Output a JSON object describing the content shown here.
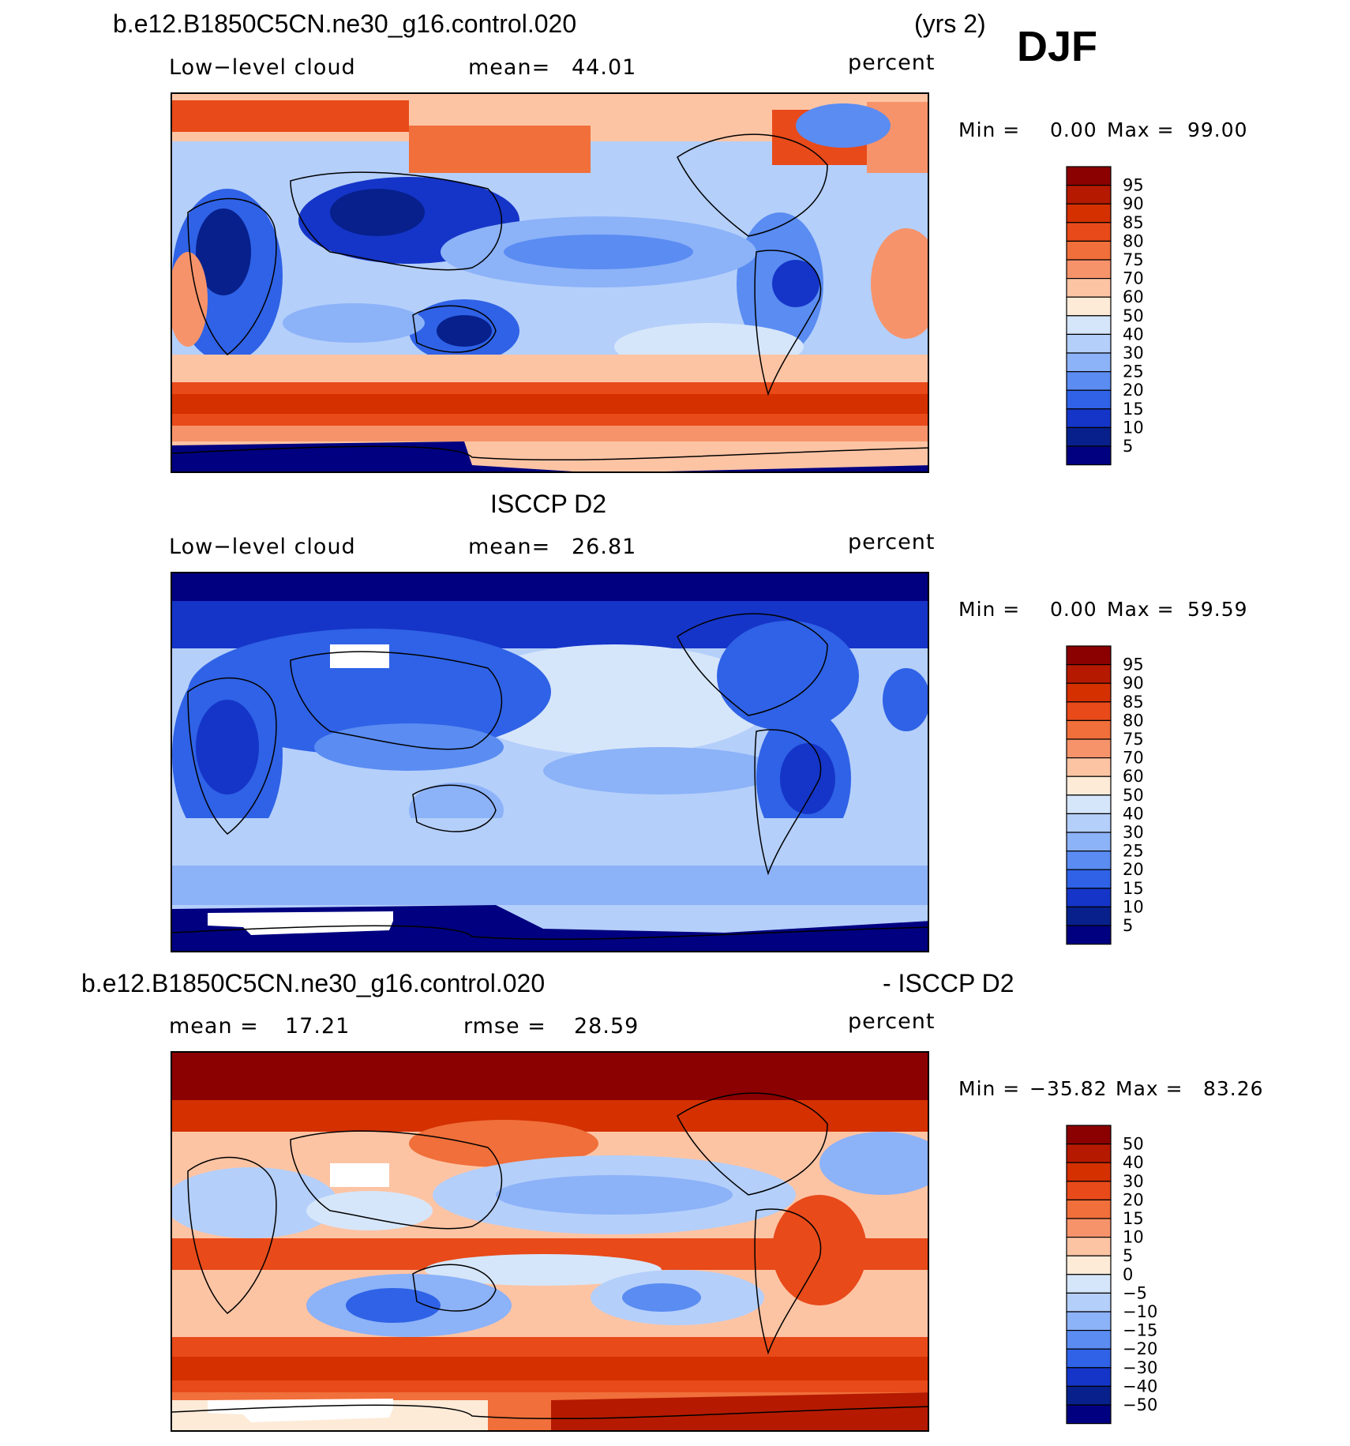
{
  "figure": {
    "season": "DJF"
  },
  "chart_data": [
    {
      "type": "heatmap",
      "title": "b.e12.B1850C5CN.ne30_g16.control.020",
      "title_right": "(yrs 2)",
      "left_label": "Low−level cloud",
      "stat_label": "mean=",
      "stat_value": "44.01",
      "units": "percent",
      "min_label": "Min =",
      "min_value": "0.00",
      "max_label": "Max =",
      "max_value": "99.00",
      "colorbar_levels": [
        "95",
        "90",
        "85",
        "80",
        "75",
        "70",
        "60",
        "50",
        "40",
        "30",
        "25",
        "20",
        "15",
        "10",
        "5"
      ],
      "colorbar_colors": [
        "#8b0000",
        "#b51a00",
        "#d43000",
        "#e84a1a",
        "#f06f3a",
        "#f7936a",
        "#fdc4a4",
        "#fdebd8",
        "#d6e6fa",
        "#b4cffa",
        "#8cb2f8",
        "#5a8cf2",
        "#2f62e6",
        "#1535c8",
        "#07208c",
        "#000080"
      ],
      "grid": false
    },
    {
      "type": "heatmap",
      "title": "ISCCP D2",
      "left_label": "Low−level cloud",
      "stat_label": "mean=",
      "stat_value": "26.81",
      "units": "percent",
      "min_label": "Min =",
      "min_value": "0.00",
      "max_label": "Max =",
      "max_value": "59.59",
      "colorbar_levels": [
        "95",
        "90",
        "85",
        "80",
        "75",
        "70",
        "60",
        "50",
        "40",
        "30",
        "25",
        "20",
        "15",
        "10",
        "5"
      ],
      "colorbar_colors": [
        "#8b0000",
        "#b51a00",
        "#d43000",
        "#e84a1a",
        "#f06f3a",
        "#f7936a",
        "#fdc4a4",
        "#fdebd8",
        "#d6e6fa",
        "#b4cffa",
        "#8cb2f8",
        "#5a8cf2",
        "#2f62e6",
        "#1535c8",
        "#07208c",
        "#000080"
      ],
      "grid": false
    },
    {
      "type": "heatmap",
      "title": "b.e12.B1850C5CN.ne30_g16.control.020",
      "title_right": "- ISCCP D2",
      "stat1_label": "mean =",
      "stat1_value": "17.21",
      "stat2_label": "rmse =",
      "stat2_value": "28.59",
      "units": "percent",
      "min_label": "Min =",
      "min_value": "−35.82",
      "max_label": "Max =",
      "max_value": "83.26",
      "colorbar_levels": [
        "50",
        "40",
        "30",
        "20",
        "15",
        "10",
        "5",
        "0",
        "−5",
        "−10",
        "−15",
        "−20",
        "−30",
        "−40",
        "−50"
      ],
      "colorbar_colors": [
        "#8b0000",
        "#b51a00",
        "#d43000",
        "#e84a1a",
        "#f06f3a",
        "#f7936a",
        "#fdc4a4",
        "#fdebd8",
        "#d6e6fa",
        "#b4cffa",
        "#8cb2f8",
        "#5a8cf2",
        "#2f62e6",
        "#1535c8",
        "#07208c",
        "#000080"
      ],
      "grid": false
    }
  ]
}
